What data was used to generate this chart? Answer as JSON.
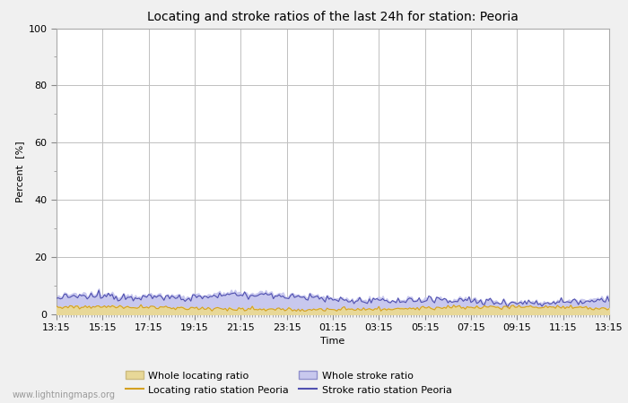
{
  "title": "Locating and stroke ratios of the last 24h for station: Peoria",
  "xlabel": "Time",
  "ylabel": "Percent  [%]",
  "ylim": [
    0,
    100
  ],
  "xtick_labels": [
    "13:15",
    "15:15",
    "17:15",
    "19:15",
    "21:15",
    "23:15",
    "01:15",
    "03:15",
    "05:15",
    "07:15",
    "09:15",
    "11:15",
    "13:15"
  ],
  "background_color": "#f0f0f0",
  "plot_bg_color": "#ffffff",
  "grid_color": "#c0c0c0",
  "fill_locating_color": "#e8d898",
  "fill_stroke_color": "#c8c8ee",
  "line_locating_color": "#d4a020",
  "line_stroke_color": "#5050b0",
  "watermark": "www.lightningmaps.org",
  "title_fontsize": 10,
  "axis_fontsize": 8,
  "tick_fontsize": 8,
  "legend_fontsize": 8
}
